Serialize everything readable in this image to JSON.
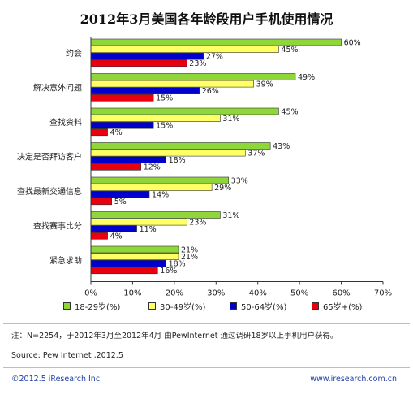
{
  "title": "2012年3月美国各年龄段用户手机使用情况",
  "chart_data": {
    "type": "bar",
    "orientation": "horizontal",
    "categories": [
      "约会",
      "解决意外问题",
      "查找资料",
      "决定是否拜访客户",
      "查找最新交通信息",
      "查找赛事比分",
      "紧急求助"
    ],
    "series": [
      {
        "name": "18-29岁(%)",
        "color": "#8fd63b",
        "values": [
          60,
          49,
          45,
          43,
          33,
          31,
          21
        ]
      },
      {
        "name": "30-49岁(%)",
        "color": "#ffff66",
        "values": [
          45,
          39,
          31,
          37,
          29,
          23,
          21
        ]
      },
      {
        "name": "50-64岁(%)",
        "color": "#0000cc",
        "values": [
          27,
          26,
          15,
          18,
          14,
          11,
          18
        ]
      },
      {
        "name": "65岁+(%)",
        "color": "#e8000f",
        "values": [
          23,
          15,
          4,
          12,
          5,
          4,
          16
        ]
      }
    ],
    "xlim": [
      0,
      70
    ],
    "x_ticks": [
      "0%",
      "10%",
      "20%",
      "30%",
      "40%",
      "50%",
      "60%",
      "70%"
    ],
    "value_suffix": "%",
    "grid": false,
    "legend_placement": "bottom"
  },
  "note": "注：N=2254，于2012年3月至2012年4月 由PewInternet 通过调研18岁以上手机用户获得。",
  "source": "Source: Pew Internet ,2012.5",
  "copyright": "©2012.5  iResearch Inc.",
  "website": "www.iresearch.com.cn"
}
